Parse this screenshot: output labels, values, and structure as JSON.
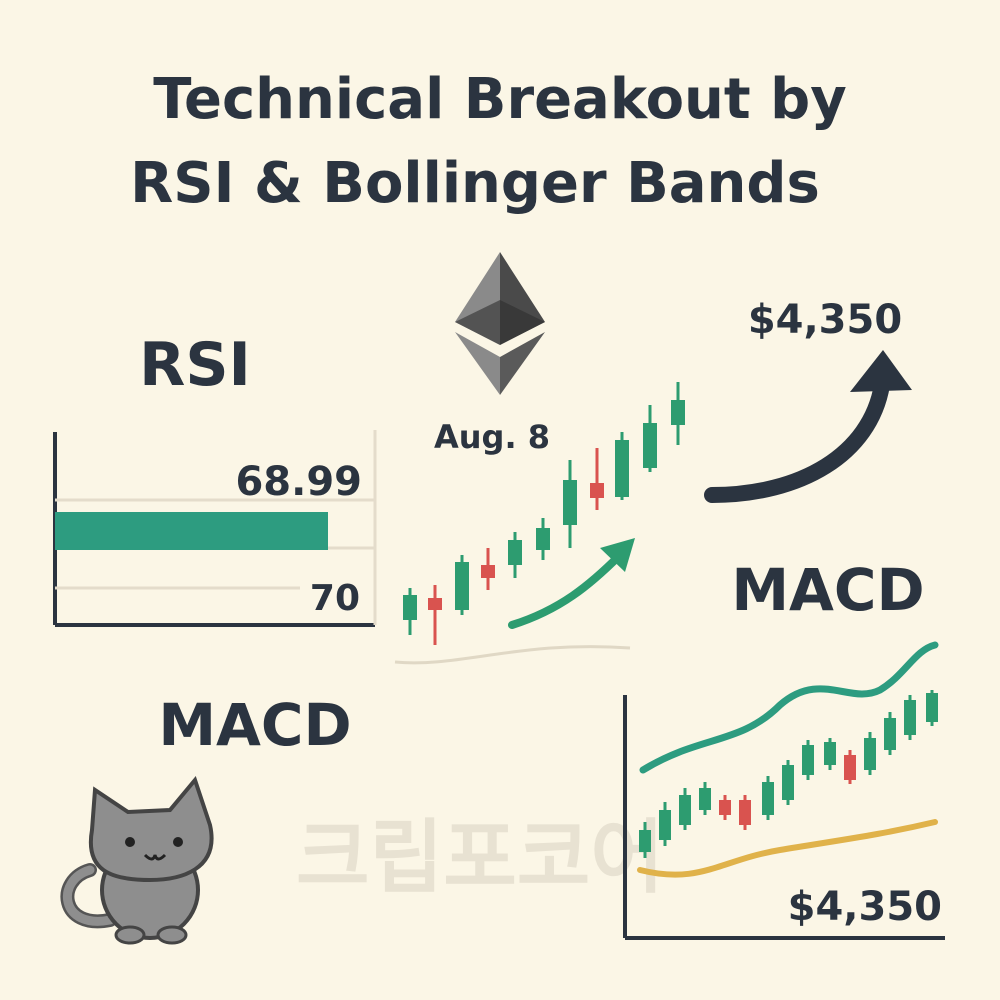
{
  "title": {
    "line1": "Technical Breakout by",
    "line2": "RSI & Bollinger Bands"
  },
  "rsi": {
    "label": "RSI",
    "value": "68.99",
    "level": "70"
  },
  "center": {
    "date": "Aug. 8"
  },
  "top_right": {
    "price": "$4,350",
    "label": "MACD"
  },
  "bottom_left": {
    "label": "MACD"
  },
  "bottom_right": {
    "price": "$4,350"
  },
  "watermark": "크립포코어"
}
